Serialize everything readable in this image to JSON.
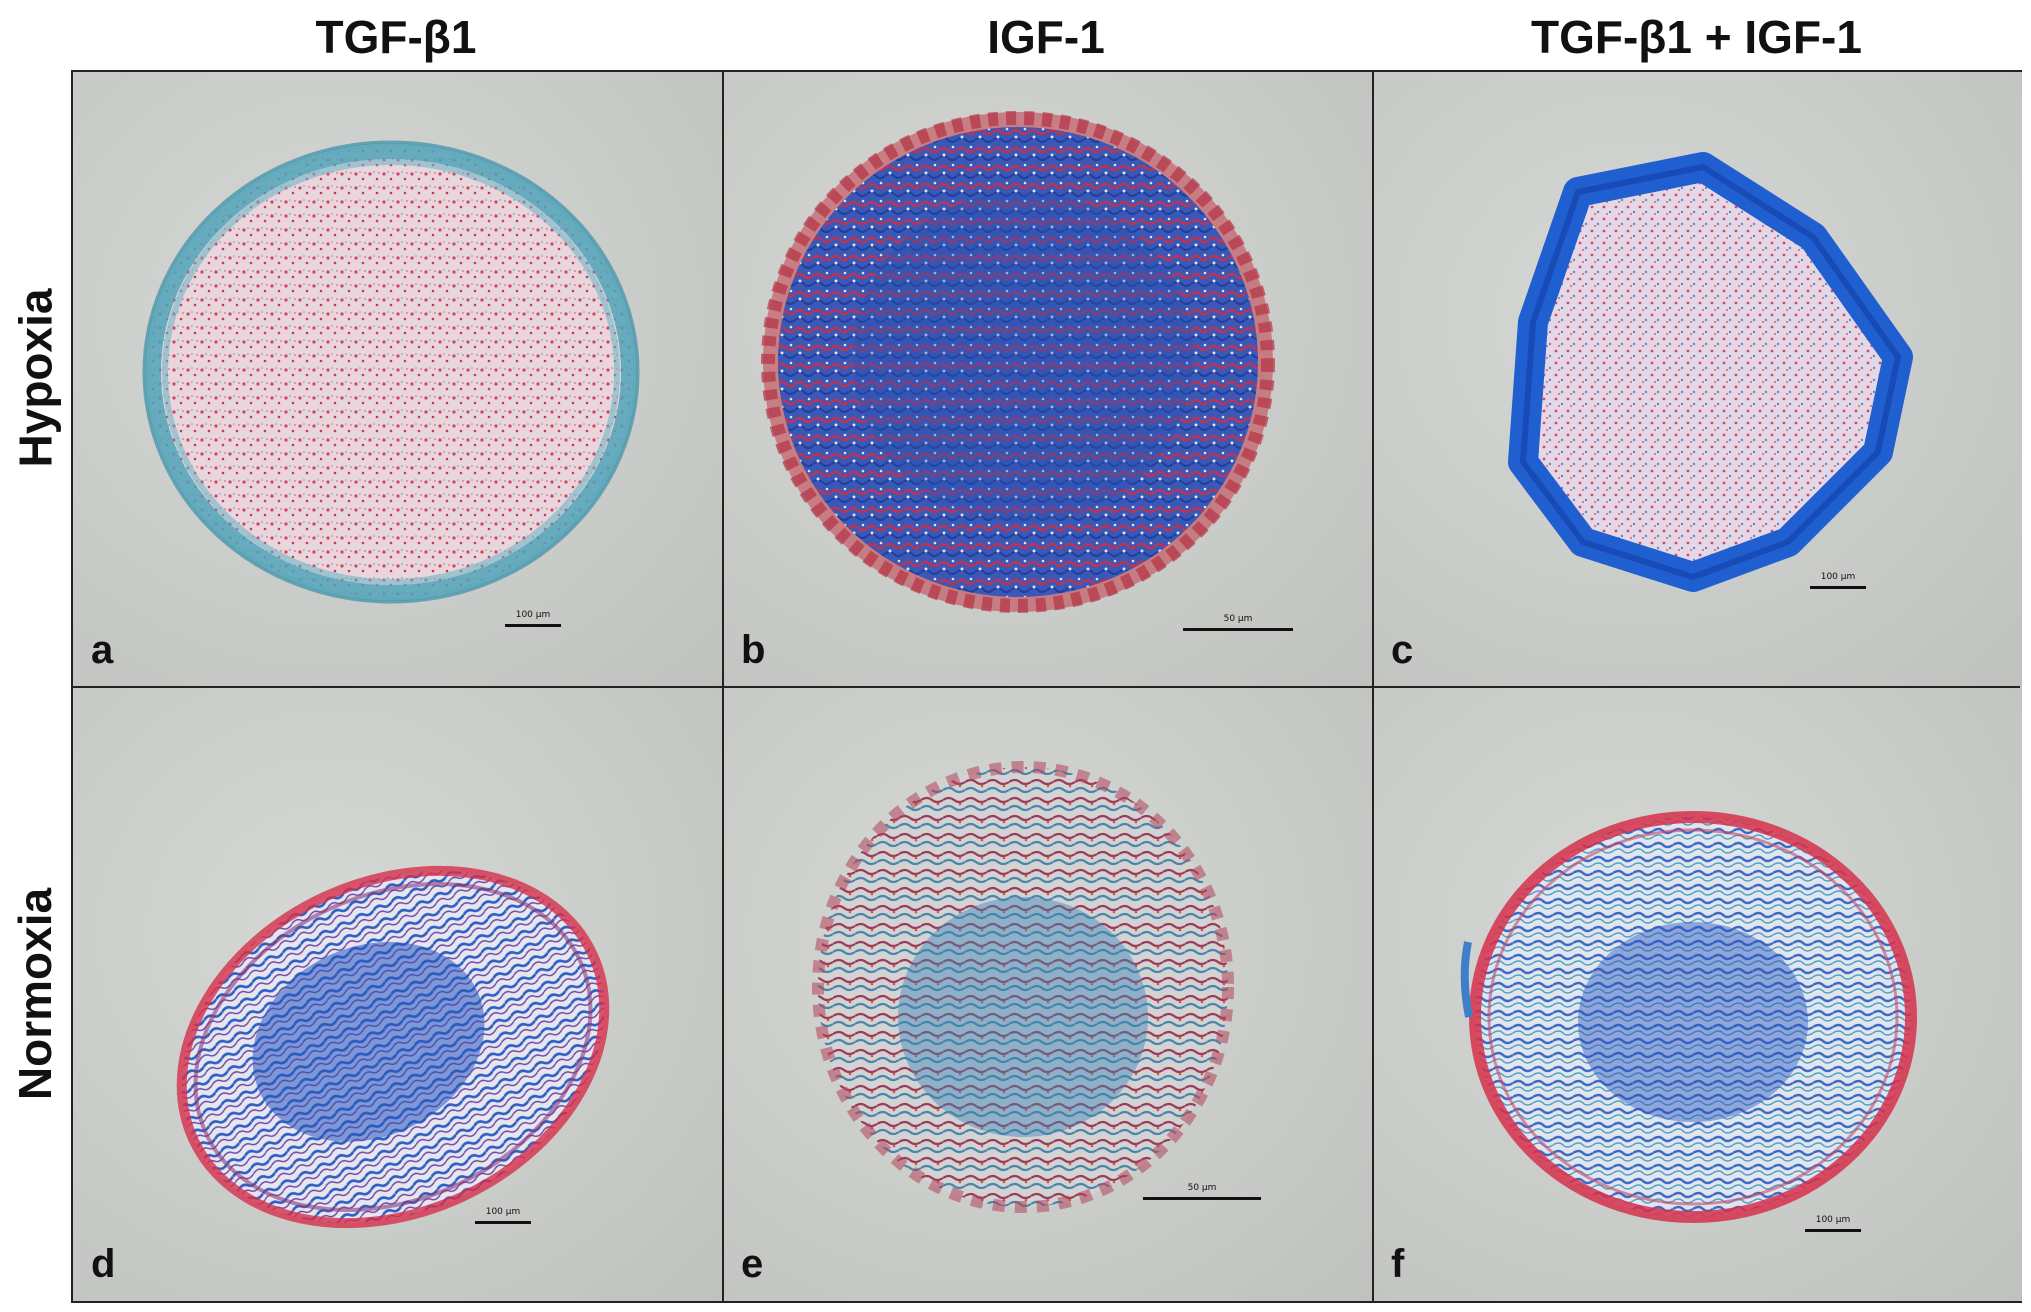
{
  "columns": [
    "TGF-β1",
    "IGF-1",
    "TGF-β1 + IGF-1"
  ],
  "rows": [
    "Hypoxia",
    "Normoxia"
  ],
  "panels": [
    {
      "letter": "a",
      "scale": "100 µm"
    },
    {
      "letter": "b",
      "scale": "50 µm"
    },
    {
      "letter": "c",
      "scale": "100 µm"
    },
    {
      "letter": "d",
      "scale": "100 µm"
    },
    {
      "letter": "e",
      "scale": "50 µm"
    },
    {
      "letter": "f",
      "scale": "100 µm"
    }
  ],
  "colors": {
    "background": "#c9cbc8",
    "blue_stain": "#2f5fc4",
    "teal_stain": "#4fa3b8",
    "red_stain": "#d6304a",
    "border": "#222222"
  }
}
